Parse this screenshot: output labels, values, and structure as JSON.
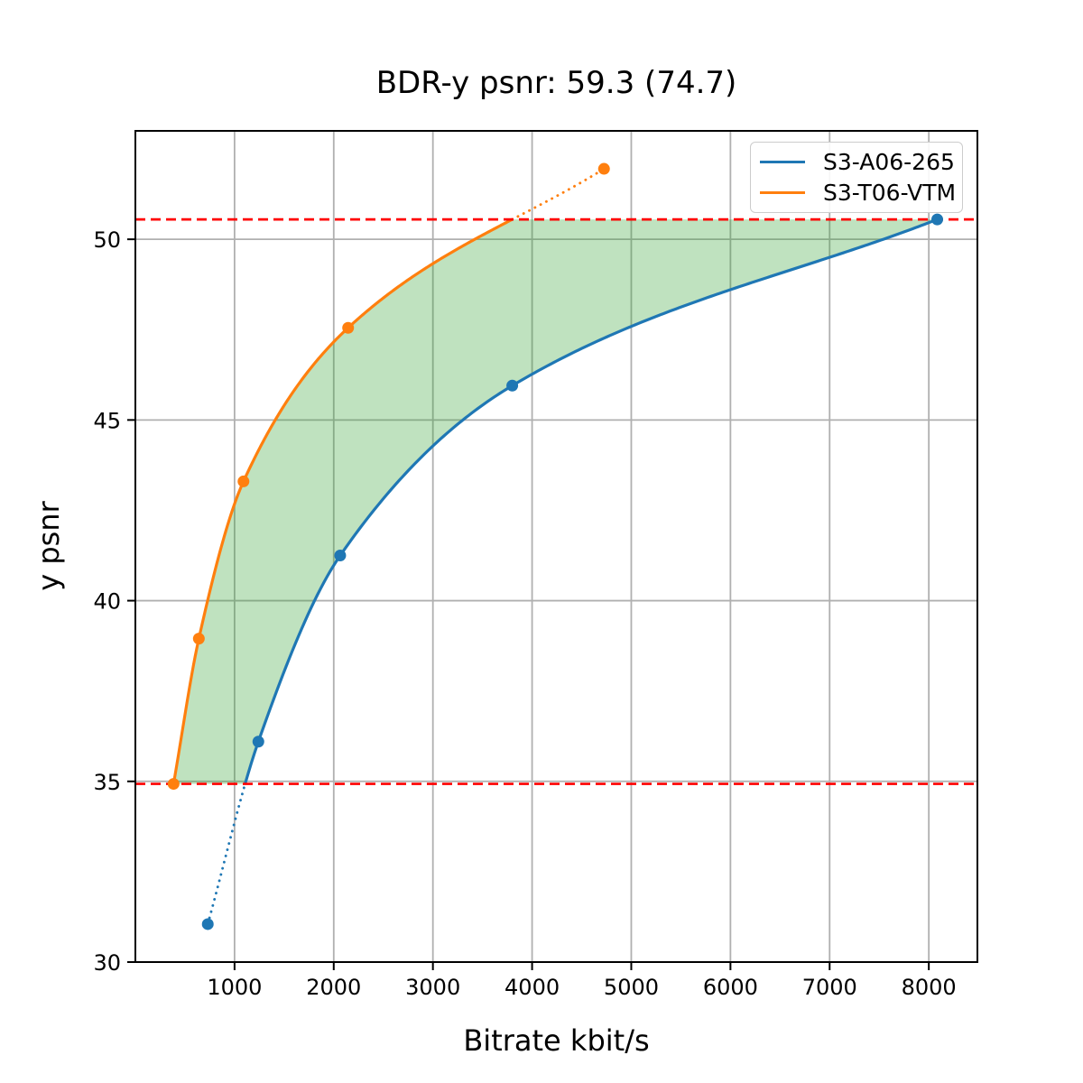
{
  "chart_data": {
    "type": "line",
    "title": "BDR-y psnr: 59.3 (74.7)",
    "xlabel": "Bitrate kbit/s",
    "ylabel": "y psnr",
    "xlim": [
      0,
      8490
    ],
    "ylim": [
      30,
      53
    ],
    "xticks": [
      1000,
      2000,
      3000,
      4000,
      5000,
      6000,
      7000,
      8000
    ],
    "yticks": [
      30,
      35,
      40,
      45,
      50
    ],
    "grid": true,
    "grid_color": "#b0b0b0",
    "spine_color": "#000000",
    "legend_position": "upper-right",
    "series": [
      {
        "name": "S3-A06-265",
        "color": "#1f77b4",
        "marker": "circle",
        "points": [
          [
            730,
            31.05
          ],
          [
            1240,
            36.1
          ],
          [
            2065,
            41.25
          ],
          [
            3800,
            45.95
          ],
          [
            8085,
            50.55
          ]
        ],
        "dotted_below_y": 34.93
      },
      {
        "name": "S3-T06-VTM",
        "color": "#ff7f0e",
        "marker": "circle",
        "points": [
          [
            385,
            34.93
          ],
          [
            640,
            38.95
          ],
          [
            1090,
            43.3
          ],
          [
            2145,
            47.55
          ],
          [
            4725,
            51.95
          ]
        ],
        "dotted_above_y": 50.55
      }
    ],
    "hlines": [
      {
        "y": 34.93,
        "color": "#ff0000",
        "style": "dashed"
      },
      {
        "y": 50.55,
        "color": "#ff0000",
        "style": "dashed"
      }
    ],
    "fill_between": {
      "between": [
        "S3-T06-VTM",
        "S3-A06-265"
      ],
      "lower_y": 34.93,
      "upper_y": 50.55,
      "color": "#2ca02c",
      "alpha": 0.3
    }
  }
}
